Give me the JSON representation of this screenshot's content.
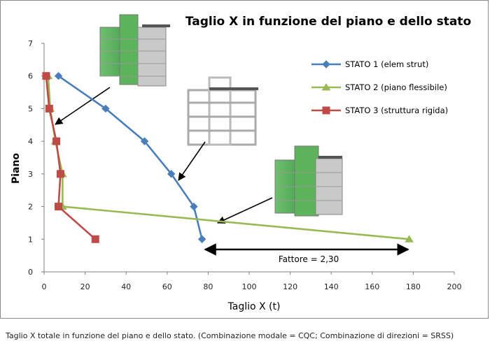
{
  "caption": "Taglio X totale in funzione del piano e dello stato. (Combinazione modale = CQC; Combinazione di direzioni = SRSS)",
  "chart_data": {
    "type": "line",
    "title": "Taglio X in funzione del piano e dello stato",
    "xlabel": "Taglio X (t)",
    "ylabel": "Piano",
    "xlim": [
      0,
      200
    ],
    "ylim": [
      0,
      7
    ],
    "xticks": [
      "0",
      "20",
      "40",
      "60",
      "80",
      "100",
      "120",
      "140",
      "160",
      "180",
      "200"
    ],
    "yticks": [
      "0",
      "1",
      "2",
      "3",
      "4",
      "5",
      "6",
      "7"
    ],
    "grid": false,
    "legend_position": "right",
    "series": [
      {
        "name": "STATO 1 (elem strut)",
        "color": "#4a7ebb",
        "marker": "diamond",
        "points": [
          [
            7,
            6
          ],
          [
            30,
            5
          ],
          [
            49,
            4
          ],
          [
            62,
            3
          ],
          [
            73,
            2
          ],
          [
            77,
            1
          ]
        ]
      },
      {
        "name": "STATO 2 (piano flessibile)",
        "color": "#98b954",
        "marker": "triangle",
        "points": [
          [
            2,
            6
          ],
          [
            3,
            5
          ],
          [
            5.5,
            4
          ],
          [
            9,
            3
          ],
          [
            9,
            2
          ],
          [
            178,
            1
          ]
        ]
      },
      {
        "name": "STATO 3 (struttura rigida)",
        "color": "#be4b48",
        "marker": "square",
        "points": [
          [
            1,
            6
          ],
          [
            2.5,
            5
          ],
          [
            6,
            4
          ],
          [
            8,
            3
          ],
          [
            7,
            2
          ],
          [
            25,
            1
          ]
        ]
      }
    ],
    "annotations": [
      {
        "text": "Fattore = 2,30"
      }
    ]
  }
}
